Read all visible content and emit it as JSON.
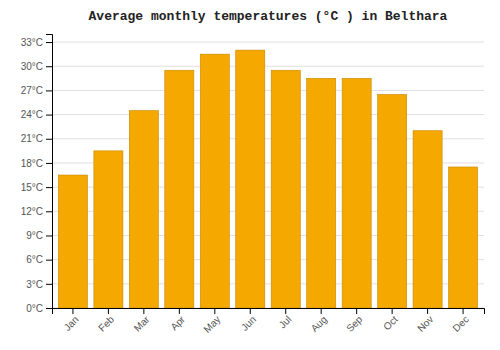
{
  "chart_data": {
    "type": "bar",
    "title": "Average monthly temperatures (°C ) in Belthara",
    "categories": [
      "Jan",
      "Feb",
      "Mar",
      "Apr",
      "May",
      "Jun",
      "Jul",
      "Aug",
      "Sep",
      "Oct",
      "Nov",
      "Dec"
    ],
    "values": [
      16.5,
      19.5,
      24.5,
      29.5,
      31.5,
      32.0,
      29.5,
      28.5,
      28.5,
      26.5,
      22.0,
      17.5
    ],
    "color": "#F5A800",
    "ylim": [
      0,
      34
    ],
    "yticks": [
      {
        "value": 0,
        "label": "0°C"
      },
      {
        "value": 3,
        "label": "3°C"
      },
      {
        "value": 6,
        "label": "6°C"
      },
      {
        "value": 9,
        "label": "9°C"
      },
      {
        "value": 12,
        "label": "12°C"
      },
      {
        "value": 15,
        "label": "15°C"
      },
      {
        "value": 18,
        "label": "18°C"
      },
      {
        "value": 21,
        "label": "21°C"
      },
      {
        "value": 24,
        "label": "24°C"
      },
      {
        "value": 27,
        "label": "27°C"
      },
      {
        "value": 30,
        "label": "30°C"
      },
      {
        "value": 33,
        "label": "33°C"
      }
    ],
    "grid": true
  }
}
